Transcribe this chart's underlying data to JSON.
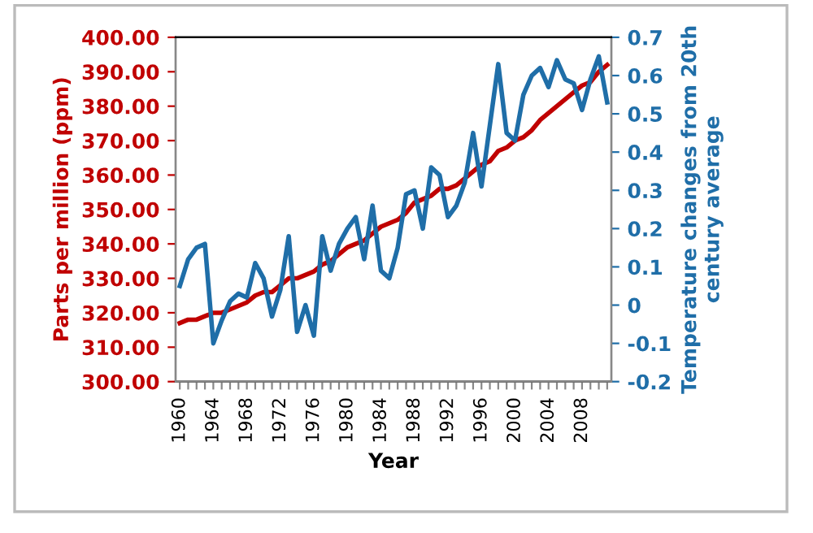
{
  "chart_data": {
    "type": "line",
    "categories": [
      "1960",
      null,
      null,
      null,
      "1964",
      null,
      null,
      null,
      "1968",
      null,
      null,
      null,
      "1972",
      null,
      null,
      null,
      "1976",
      null,
      null,
      null,
      "1980",
      null,
      null,
      null,
      "1984",
      null,
      null,
      null,
      "1988",
      null,
      null,
      null,
      "1992",
      null,
      null,
      null,
      "1996",
      null,
      null,
      null,
      "2000",
      null,
      null,
      null,
      "2004",
      null,
      null,
      null,
      "2008",
      null,
      null,
      null
    ],
    "series": [
      {
        "color": "#c00000",
        "values": [
          317,
          318,
          318,
          319,
          320,
          320,
          321,
          322,
          323,
          325,
          326,
          326,
          328,
          330,
          330,
          331,
          332,
          334,
          335,
          337,
          339,
          340,
          341,
          343,
          345,
          346,
          347,
          349,
          352,
          353,
          354,
          356,
          356,
          357,
          359,
          361,
          363,
          364,
          367,
          368,
          370,
          371,
          373,
          376,
          378,
          380,
          382,
          384,
          386,
          387,
          390,
          392
        ]
      },
      {
        "color": "#1f6ea8",
        "axis": "y2",
        "values": [
          0.05,
          0.12,
          0.15,
          0.16,
          -0.1,
          -0.04,
          0.01,
          0.03,
          0.02,
          0.11,
          0.07,
          -0.03,
          0.04,
          0.18,
          -0.07,
          0.0,
          -0.08,
          0.18,
          0.09,
          0.16,
          0.2,
          0.23,
          0.12,
          0.26,
          0.09,
          0.07,
          0.15,
          0.29,
          0.3,
          0.2,
          0.36,
          0.34,
          0.23,
          0.26,
          0.32,
          0.45,
          0.31,
          0.47,
          0.63,
          0.45,
          0.43,
          0.55,
          0.6,
          0.62,
          0.57,
          0.64,
          0.59,
          0.58,
          0.51,
          0.59,
          0.65,
          0.53
        ]
      }
    ],
    "xlabel": "Year",
    "ylabel": "Parts per million (ppm)",
    "y2label": "Temperature changes from 20th\ncentury average",
    "ylim": [
      300,
      400
    ],
    "yticks": [
      {
        "value": 300,
        "label": "300.00"
      },
      {
        "value": 310,
        "label": "310.00"
      },
      {
        "value": 320,
        "label": "320.00"
      },
      {
        "value": 330,
        "label": "330.00"
      },
      {
        "value": 340,
        "label": "340.00"
      },
      {
        "value": 350,
        "label": "350.00"
      },
      {
        "value": 360,
        "label": "360.00"
      },
      {
        "value": 370,
        "label": "370.00"
      },
      {
        "value": 380,
        "label": "380.00"
      },
      {
        "value": 390,
        "label": "390.00"
      },
      {
        "value": 400,
        "label": "400.00"
      }
    ],
    "y2lim": [
      -0.2,
      0.7
    ],
    "y2ticks": [
      -0.2,
      -0.1,
      0,
      0.1,
      0.2,
      0.3,
      0.4,
      0.5,
      0.6,
      0.7
    ],
    "marker": "none",
    "line_style": "solid",
    "grid": false
  }
}
